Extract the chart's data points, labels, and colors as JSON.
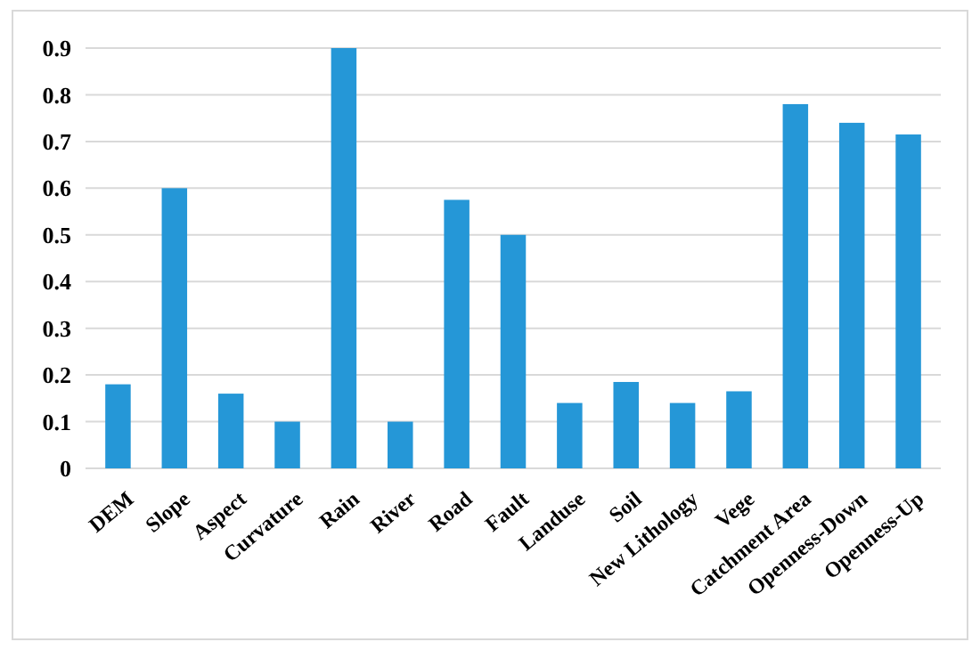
{
  "chart_data": {
    "type": "bar",
    "categories": [
      "DEM",
      "Slope",
      "Aspect",
      "Curvature",
      "Rain",
      "River",
      "Road",
      "Fault",
      "Landuse",
      "Soil",
      "New Lithology",
      "Vege",
      "Catchment Area",
      "Openness-Down",
      "Openness-Up"
    ],
    "values": [
      0.18,
      0.6,
      0.16,
      0.1,
      0.9,
      0.1,
      0.575,
      0.5,
      0.14,
      0.185,
      0.14,
      0.165,
      0.78,
      0.74,
      0.715
    ],
    "color": "#2597d7",
    "ylim": [
      0,
      0.9
    ],
    "yticks": [
      0,
      0.1,
      0.2,
      0.3,
      0.4,
      0.5,
      0.6,
      0.7,
      0.8,
      0.9
    ],
    "grid": "y"
  }
}
